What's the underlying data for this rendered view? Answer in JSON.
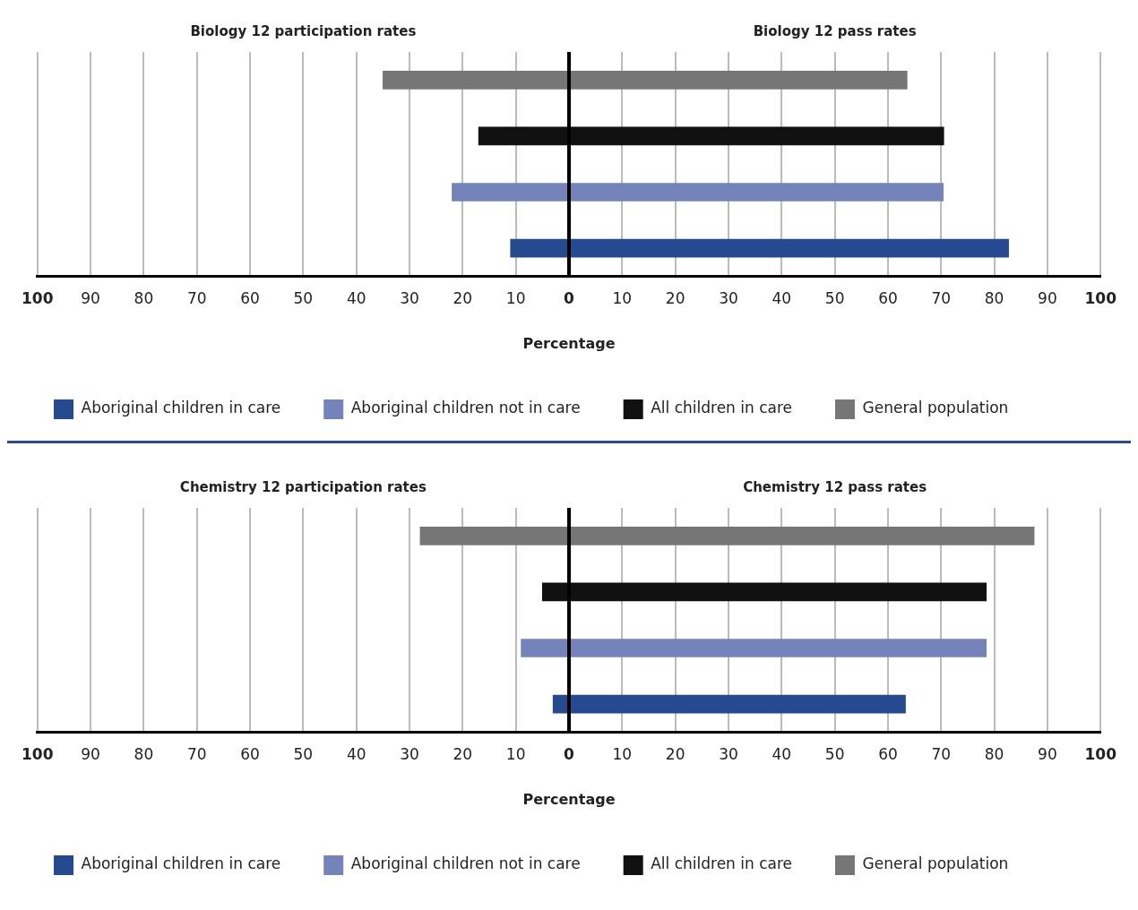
{
  "chart_data": [
    {
      "type": "bar",
      "orientation": "horizontal",
      "stacked": true,
      "annotations": [
        "Biology 12 participation rates",
        "Biology 12 pass rates"
      ],
      "xlabel": "Percentage",
      "categories": [
        null,
        null,
        null,
        null
      ],
      "series": [
        {
          "name": "Aboriginal children in care",
          "color": "#264a8f",
          "values": [
            null,
            null,
            null,
            82.7
          ]
        },
        {
          "name": "Aboriginal children not in care",
          "color": "#7484bb",
          "values": [
            null,
            null,
            70.4,
            null
          ]
        },
        {
          "name": "All children in care",
          "color": "#111111",
          "values": [
            null,
            70.5,
            null,
            null
          ]
        },
        {
          "name": "General population",
          "color": "#767676",
          "values": [
            63.6,
            null,
            null,
            null
          ]
        },
        {
          "color": "#264a8f",
          "values": [
            null,
            null,
            null,
            -11
          ]
        },
        {
          "color": "#7484bb",
          "values": [
            null,
            null,
            -22,
            null
          ]
        },
        {
          "color": "#111111",
          "values": [
            null,
            -17,
            null,
            null
          ]
        },
        {
          "color": "#767676",
          "values": [
            -35,
            null,
            null,
            null
          ]
        }
      ],
      "xlim": [
        -100,
        100
      ],
      "xticks": [
        {
          "value": -100,
          "label": "100"
        },
        {
          "value": -90,
          "label": "90"
        },
        {
          "value": -80,
          "label": "80"
        },
        {
          "value": -70,
          "label": "70"
        },
        {
          "value": -60,
          "label": "60"
        },
        {
          "value": -50,
          "label": "50"
        },
        {
          "value": -40,
          "label": "40"
        },
        {
          "value": -30,
          "label": "30"
        },
        {
          "value": -20,
          "label": "20"
        },
        {
          "value": -10,
          "label": "10"
        },
        0,
        10,
        20,
        30,
        40,
        50,
        60,
        70,
        80,
        90,
        100
      ],
      "grid": "x",
      "legend": "bottom",
      "tick_labels": "x",
      "ref_lines": [
        {
          "axis": "x",
          "value": 0,
          "color": "#000000"
        }
      ]
    },
    {
      "type": "bar",
      "orientation": "horizontal",
      "stacked": true,
      "annotations": [
        "Chemistry 12 participation rates",
        "Chemistry 12 pass rates"
      ],
      "xlabel": "Percentage",
      "categories": [
        null,
        null,
        null,
        null
      ],
      "series": [
        {
          "name": "Aboriginal children in care",
          "color": "#264a8f",
          "values": [
            null,
            null,
            null,
            63.3
          ]
        },
        {
          "name": "Aboriginal children not in care",
          "color": "#7484bb",
          "values": [
            null,
            null,
            78.5,
            null
          ]
        },
        {
          "name": "All children in care",
          "color": "#111111",
          "values": [
            null,
            78.5,
            null,
            null
          ]
        },
        {
          "name": "General population",
          "color": "#767676",
          "values": [
            87.5,
            null,
            null,
            null
          ]
        },
        {
          "color": "#264a8f",
          "values": [
            null,
            null,
            null,
            -3
          ]
        },
        {
          "color": "#7484bb",
          "values": [
            null,
            null,
            -9,
            null
          ]
        },
        {
          "color": "#111111",
          "values": [
            null,
            -5,
            null,
            null
          ]
        },
        {
          "color": "#767676",
          "values": [
            -28,
            null,
            null,
            null
          ]
        }
      ],
      "xlim": [
        -100,
        100
      ],
      "xticks": [
        {
          "value": -100,
          "label": "100"
        },
        {
          "value": -90,
          "label": "90"
        },
        {
          "value": -80,
          "label": "80"
        },
        {
          "value": -70,
          "label": "70"
        },
        {
          "value": -60,
          "label": "60"
        },
        {
          "value": -50,
          "label": "50"
        },
        {
          "value": -40,
          "label": "40"
        },
        {
          "value": -30,
          "label": "30"
        },
        {
          "value": -20,
          "label": "20"
        },
        {
          "value": -10,
          "label": "10"
        },
        0,
        10,
        20,
        30,
        40,
        50,
        60,
        70,
        80,
        90,
        100
      ],
      "grid": "x",
      "legend": "bottom",
      "tick_labels": "x",
      "ref_lines": [
        {
          "axis": "x",
          "value": 0,
          "color": "#000000"
        }
      ]
    }
  ]
}
